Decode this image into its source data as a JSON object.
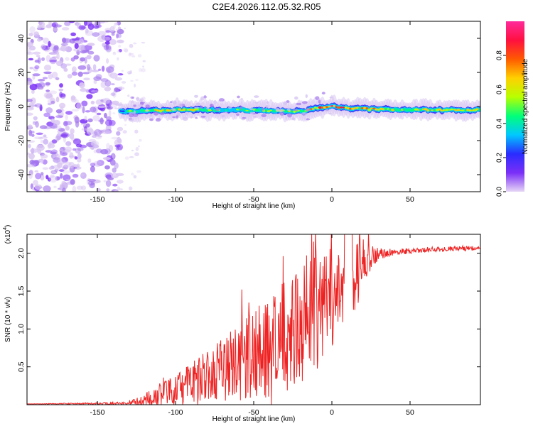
{
  "title": "C2E4.2026.112.05.32.R05",
  "chart_data": [
    {
      "type": "heatmap",
      "name": "spectrogram",
      "xlabel": "Height of straight line (km)",
      "ylabel": "Frequency (Hz)",
      "xlim": [
        -195,
        95
      ],
      "ylim": [
        -50,
        50
      ],
      "xticks": [
        -150,
        -100,
        -50,
        0,
        50
      ],
      "yticks": [
        -40,
        -20,
        0,
        20,
        40
      ],
      "colorbar": {
        "label": "Normalized spectral amplitude",
        "range": [
          0,
          1
        ],
        "ticks": [
          "0.0",
          "0.2",
          "0.4",
          "0.6",
          "0.8"
        ],
        "tick_values": [
          0.0,
          0.2,
          0.4,
          0.6,
          0.8
        ],
        "colors": [
          "#e6d6f6",
          "#7b2ff7",
          "#2a2cff",
          "#00c8ff",
          "#00ff7a",
          "#b8ff00",
          "#ffd000",
          "#ff5a00",
          "#ff1040",
          "#ff2a9a"
        ]
      },
      "ridge": {
        "frequency_hz": [
          [
            -130,
            -3
          ],
          [
            -100,
            -2
          ],
          [
            -60,
            -2
          ],
          [
            -20,
            -3
          ],
          [
            -10,
            -1
          ],
          [
            0,
            0
          ],
          [
            10,
            -1
          ],
          [
            40,
            -2
          ],
          [
            95,
            -2
          ]
        ],
        "amplitude": [
          [
            -140,
            0.15
          ],
          [
            -130,
            0.45
          ],
          [
            -110,
            0.6
          ],
          [
            -60,
            0.5
          ],
          [
            -20,
            0.55
          ],
          [
            -10,
            0.75
          ],
          [
            0,
            0.9
          ],
          [
            10,
            0.7
          ],
          [
            40,
            0.55
          ],
          [
            95,
            0.6
          ]
        ]
      },
      "noise_region_x": [
        -195,
        -135
      ]
    },
    {
      "type": "line",
      "name": "snr",
      "xlabel": "Height of straight line (km)",
      "ylabel": "SNR (10 * v/v)",
      "scale_label": "(x10",
      "scale_exp": "4",
      "xlim": [
        -195,
        95
      ],
      "ylim": [
        0,
        2.25
      ],
      "xticks": [
        -150,
        -100,
        -50,
        0,
        50
      ],
      "yticks": [
        "0.5",
        "1.0",
        "1.5",
        "2.0"
      ],
      "ytick_values": [
        0.5,
        1.0,
        1.5,
        2.0
      ],
      "color": "#ee2222",
      "envelope_x": [
        -195,
        -130,
        -115,
        -100,
        -80,
        -60,
        -40,
        -25,
        -15,
        -10,
        0,
        10,
        20,
        30,
        40,
        60,
        95
      ],
      "envelope_y": [
        0.01,
        0.02,
        0.1,
        0.2,
        0.4,
        0.6,
        0.85,
        1.05,
        1.3,
        1.4,
        1.45,
        1.65,
        1.95,
        2.0,
        2.02,
        2.05,
        2.07
      ],
      "spike_amp_x": [
        -195,
        -130,
        -110,
        -80,
        -50,
        -20,
        -10,
        0,
        10,
        20,
        30,
        40,
        95
      ],
      "spike_amp_y": [
        0.0,
        0.02,
        0.15,
        0.35,
        0.6,
        0.85,
        0.9,
        0.65,
        0.6,
        0.3,
        0.08,
        0.04,
        0.03
      ]
    }
  ]
}
